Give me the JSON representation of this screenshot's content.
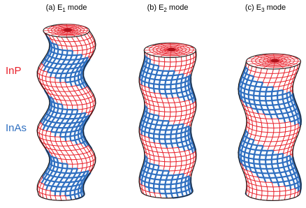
{
  "panels": [
    {
      "prefix": "(a) E",
      "sub": "1",
      "suffix": " mode"
    },
    {
      "prefix": "(b) E",
      "sub": "2",
      "suffix": " mode"
    },
    {
      "prefix": "(c) E",
      "sub": "3",
      "suffix": " mode"
    }
  ],
  "materials": {
    "top": "InP",
    "bottom": "InAs"
  }
}
